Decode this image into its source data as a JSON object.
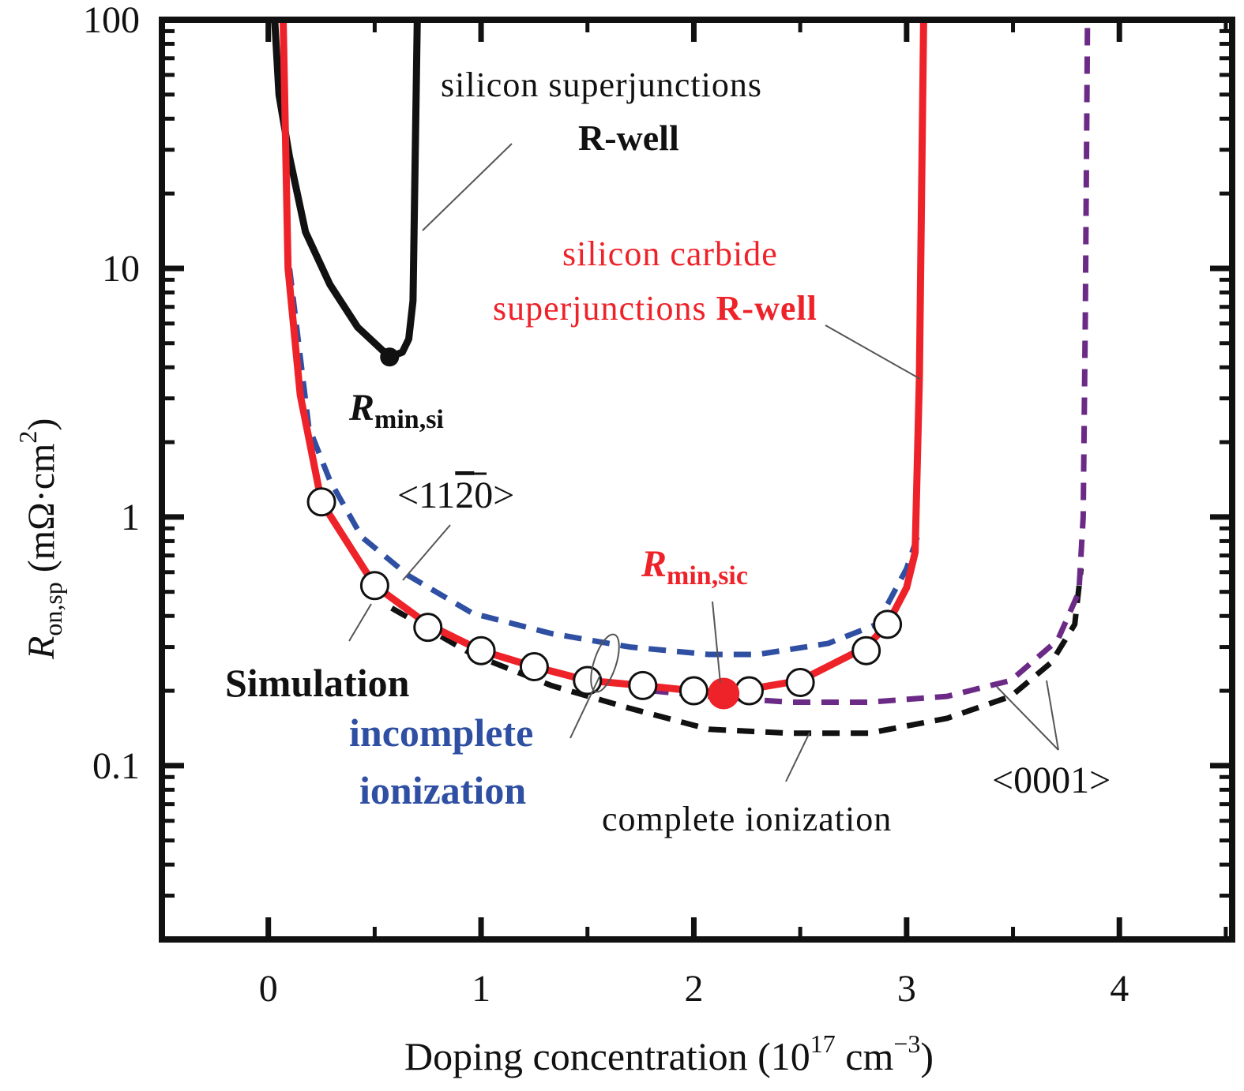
{
  "chart_data": {
    "type": "line",
    "xlabel": "Doping concentration (10",
    "xlabel_sup": "17",
    "xlabel_unit": " cm",
    "xlabel_unit_sup": "−3",
    "xlabel_close": ")",
    "ylabel_main": "R",
    "ylabel_sub": "on,sp",
    "ylabel_unit": " (mΩ·cm",
    "ylabel_unit_sup": "2",
    "ylabel_close": ")",
    "xlim": [
      -0.5,
      4.53
    ],
    "ylim": [
      0.02,
      100
    ],
    "yscale": "log",
    "grid": false,
    "x_ticks": [
      "0",
      "1",
      "2",
      "3",
      "4"
    ],
    "y_ticks": [
      "0.1",
      "1",
      "10",
      "100"
    ],
    "colors": {
      "si": "#111111",
      "sic": "#ee2229",
      "incomplete": "#2f4fa3",
      "complete": "#111111",
      "c_axis": "#6b2a86"
    },
    "series": [
      {
        "key": "si",
        "style": "solid",
        "color": "#111111",
        "x": [
          0.03,
          0.05,
          0.1,
          0.175,
          0.29,
          0.42,
          0.57,
          0.63,
          0.66,
          0.68,
          0.7
        ],
        "y": [
          100,
          50,
          28,
          14,
          8.6,
          5.8,
          4.4,
          4.6,
          5.2,
          7.4,
          100
        ]
      },
      {
        "key": "sic",
        "style": "solid",
        "color": "#ee2229",
        "x": [
          0.07,
          0.093,
          0.15,
          0.25,
          0.5,
          0.75,
          1.0,
          1.25,
          1.5,
          1.76,
          2.0,
          2.14,
          2.5,
          2.81,
          2.91,
          3.0,
          3.04,
          3.06,
          3.08
        ],
        "y": [
          100,
          10,
          3.1,
          1.15,
          0.53,
          0.37,
          0.29,
          0.25,
          0.22,
          0.21,
          0.2,
          0.195,
          0.22,
          0.3,
          0.37,
          0.52,
          0.72,
          3.6,
          100
        ]
      },
      {
        "key": "incomplete",
        "style": "dashed",
        "color": "#2f4fa3",
        "x": [
          0.1,
          0.19,
          0.29,
          0.44,
          0.66,
          0.96,
          1.33,
          1.7,
          2.07,
          2.3,
          2.63,
          2.86,
          3.0,
          3.05
        ],
        "y": [
          10,
          2.3,
          1.4,
          0.83,
          0.58,
          0.41,
          0.34,
          0.3,
          0.28,
          0.28,
          0.31,
          0.37,
          0.62,
          0.83
        ]
      },
      {
        "key": "complete",
        "style": "dashed",
        "color": "#111111",
        "x": [
          0.58,
          0.96,
          1.33,
          1.7,
          2.07,
          2.45,
          2.82,
          3.19,
          3.49,
          3.68,
          3.79,
          3.82
        ],
        "y": [
          0.43,
          0.28,
          0.21,
          0.17,
          0.14,
          0.135,
          0.135,
          0.155,
          0.19,
          0.26,
          0.37,
          0.62
        ]
      },
      {
        "key": "c_axis",
        "style": "dashed",
        "color": "#6b2a86",
        "x": [
          1.8,
          2.07,
          2.45,
          2.82,
          3.19,
          3.49,
          3.71,
          3.81,
          3.83,
          3.84,
          3.85
        ],
        "y": [
          0.2,
          0.19,
          0.18,
          0.18,
          0.19,
          0.22,
          0.32,
          0.5,
          1.0,
          6.4,
          95
        ]
      }
    ],
    "simulation_points": {
      "x": [
        0.25,
        0.5,
        0.75,
        1.0,
        1.25,
        1.5,
        1.76,
        2.0,
        2.26,
        2.5,
        2.81,
        2.91
      ],
      "y": [
        1.15,
        0.53,
        0.36,
        0.29,
        0.25,
        0.22,
        0.21,
        0.2,
        0.2,
        0.216,
        0.29,
        0.37
      ]
    },
    "minima": [
      {
        "key": "si",
        "x": 0.57,
        "y": 4.4,
        "color": "#111111"
      },
      {
        "key": "sic",
        "x": 2.14,
        "y": 0.195,
        "color": "#ee2229"
      }
    ],
    "annotations": {
      "si_title": "silicon superjunctions",
      "si_rwell": "R-well",
      "sic_title": "silicon carbide",
      "sic_sj": "superjunctions ",
      "sic_rwell": "R-well",
      "rmin_si_main": "R",
      "rmin_si_sub": "min,si",
      "rmin_sic_main": "R",
      "rmin_sic_sub": "min,sic",
      "orient_1120_a": "<11",
      "orient_1120_b": "2",
      "orient_1120_c": "0>",
      "simulation": "Simulation",
      "incomplete": "incomplete",
      "ionization": "ionization",
      "complete": "complete ionization",
      "orient_0001": "<0001>"
    }
  }
}
